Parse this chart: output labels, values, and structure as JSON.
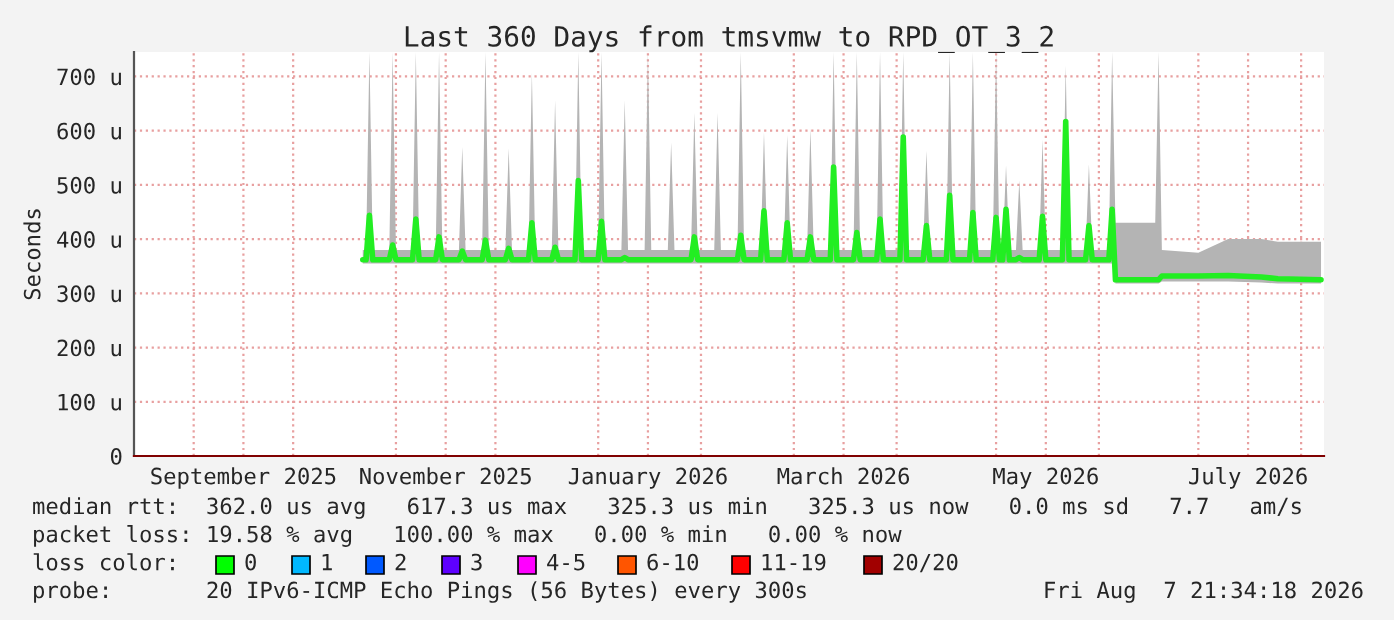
{
  "chart_data": {
    "type": "line",
    "title": "Last 360 Days from tmsvmw to RPD_OT_3_2",
    "ylabel": "Seconds",
    "xlim": [
      "2025-08-14",
      "2026-08-07T21:34"
    ],
    "ylim": [
      0,
      745
    ],
    "xticks": [
      {
        "value": "2025-09-01",
        "label": null
      },
      {
        "value": "2025-09-16",
        "label": "September 2025"
      },
      {
        "value": "2025-10-01",
        "label": null
      },
      {
        "value": "2025-11-01",
        "label": null
      },
      {
        "value": "2025-11-16",
        "label": "November 2025"
      },
      {
        "value": "2025-12-01",
        "label": null
      },
      {
        "value": "2026-01-01",
        "label": null
      },
      {
        "value": "2026-01-16",
        "label": "January 2026"
      },
      {
        "value": "2026-02-01",
        "label": null
      },
      {
        "value": "2026-03-01",
        "label": null
      },
      {
        "value": "2026-03-16",
        "label": "March 2026"
      },
      {
        "value": "2026-04-01",
        "label": null
      },
      {
        "value": "2026-05-01",
        "label": null
      },
      {
        "value": "2026-05-16",
        "label": "May 2026"
      },
      {
        "value": "2026-06-01",
        "label": null
      },
      {
        "value": "2026-07-01",
        "label": null
      },
      {
        "value": "2026-07-16",
        "label": "July 2026"
      },
      {
        "value": "2026-08-01",
        "label": null
      }
    ],
    "yticks": [
      {
        "value": 0,
        "label": "0"
      },
      {
        "value": 100,
        "label": "100 u"
      },
      {
        "value": 200,
        "label": "200 u"
      },
      {
        "value": 300,
        "label": "300 u"
      },
      {
        "value": 400,
        "label": "400 u"
      },
      {
        "value": 500,
        "label": "500 u"
      },
      {
        "value": 600,
        "label": "600 u"
      },
      {
        "value": 700,
        "label": "700 u"
      }
    ],
    "grid": true,
    "series": [
      {
        "color": "#22ee22",
        "x": [
          "2025-10-22",
          "2025-10-23",
          "2025-10-24",
          "2025-10-25",
          "2025-10-30",
          "2025-10-31",
          "2025-11-01",
          "2025-11-06",
          "2025-11-07",
          "2025-11-08",
          "2025-11-13",
          "2025-11-14",
          "2025-11-15",
          "2025-11-20",
          "2025-11-21",
          "2025-11-22",
          "2025-11-27",
          "2025-11-28",
          "2025-11-29",
          "2025-12-04",
          "2025-12-05",
          "2025-12-06",
          "2025-12-11",
          "2025-12-12",
          "2025-12-13",
          "2025-12-18",
          "2025-12-19",
          "2025-12-20",
          "2025-12-25",
          "2025-12-26",
          "2025-12-27",
          "2026-01-01",
          "2026-01-02",
          "2026-01-03",
          "2026-01-08",
          "2026-01-09",
          "2026-01-10",
          "2026-01-15",
          "2026-01-16",
          "2026-01-17",
          "2026-01-22",
          "2026-01-23",
          "2026-01-24",
          "2026-01-29",
          "2026-01-30",
          "2026-01-31",
          "2026-02-05",
          "2026-02-06",
          "2026-02-07",
          "2026-02-12",
          "2026-02-13",
          "2026-02-14",
          "2026-02-19",
          "2026-02-20",
          "2026-02-21",
          "2026-02-26",
          "2026-02-27",
          "2026-02-28",
          "2026-03-05",
          "2026-03-06",
          "2026-03-07",
          "2026-03-12",
          "2026-03-13",
          "2026-03-14",
          "2026-03-19",
          "2026-03-20",
          "2026-03-21",
          "2026-03-26",
          "2026-03-27",
          "2026-03-28",
          "2026-04-02",
          "2026-04-03",
          "2026-04-04",
          "2026-04-09",
          "2026-04-10",
          "2026-04-11",
          "2026-04-16",
          "2026-04-17",
          "2026-04-18",
          "2026-04-23",
          "2026-04-24",
          "2026-04-25",
          "2026-04-30",
          "2026-05-01",
          "2026-05-02",
          "2026-05-03",
          "2026-05-04",
          "2026-05-05",
          "2026-05-07",
          "2026-05-08",
          "2026-05-09",
          "2026-05-14",
          "2026-05-15",
          "2026-05-16",
          "2026-05-21",
          "2026-05-22",
          "2026-05-23",
          "2026-05-28",
          "2026-05-29",
          "2026-05-30",
          "2026-06-04",
          "2026-06-05",
          "2026-06-06",
          "2026-06-18",
          "2026-06-19",
          "2026-06-20",
          "2026-07-01",
          "2026-07-10",
          "2026-07-20",
          "2026-07-25",
          "2026-08-07"
        ],
        "values": [
          362,
          362,
          444,
          362,
          362,
          389,
          362,
          362,
          437,
          362,
          362,
          404,
          362,
          362,
          378,
          362,
          362,
          398,
          362,
          362,
          383,
          362,
          362,
          430,
          362,
          362,
          385,
          362,
          362,
          508,
          362,
          362,
          433,
          362,
          362,
          366,
          362,
          362,
          362,
          362,
          362,
          362,
          362,
          362,
          404,
          362,
          362,
          362,
          362,
          362,
          407,
          362,
          362,
          452,
          362,
          362,
          430,
          362,
          362,
          404,
          362,
          362,
          533,
          362,
          362,
          412,
          362,
          362,
          437,
          362,
          362,
          588,
          362,
          362,
          425,
          362,
          362,
          481,
          362,
          362,
          449,
          362,
          362,
          440,
          362,
          362,
          455,
          362,
          362,
          366,
          362,
          362,
          442,
          362,
          362,
          617,
          362,
          362,
          425,
          362,
          362,
          455,
          325,
          325,
          325,
          332,
          332,
          333,
          330,
          327,
          325
        ],
        "lower": [
          355,
          355,
          355,
          355,
          355,
          355,
          355,
          355,
          355,
          355,
          355,
          355,
          355,
          355,
          355,
          355,
          355,
          355,
          355,
          355,
          355,
          355,
          355,
          355,
          355,
          355,
          355,
          355,
          355,
          355,
          355,
          355,
          355,
          355,
          355,
          355,
          355,
          355,
          355,
          355,
          355,
          355,
          355,
          355,
          355,
          355,
          355,
          355,
          355,
          355,
          355,
          355,
          355,
          355,
          355,
          355,
          355,
          355,
          355,
          355,
          355,
          355,
          355,
          355,
          355,
          355,
          355,
          355,
          355,
          355,
          355,
          355,
          355,
          355,
          355,
          355,
          355,
          355,
          355,
          355,
          355,
          355,
          355,
          355,
          355,
          355,
          355,
          355,
          355,
          355,
          355,
          355,
          355,
          355,
          355,
          355,
          355,
          355,
          355,
          355,
          355,
          355,
          318,
          318,
          318,
          322,
          322,
          322,
          320,
          318,
          318
        ],
        "upper": [
          380,
          380,
          745,
          380,
          380,
          745,
          380,
          380,
          745,
          380,
          380,
          745,
          380,
          380,
          570,
          380,
          380,
          745,
          380,
          380,
          567,
          380,
          380,
          707,
          380,
          380,
          656,
          380,
          380,
          745,
          380,
          380,
          745,
          380,
          380,
          656,
          380,
          380,
          745,
          380,
          380,
          578,
          380,
          380,
          633,
          380,
          380,
          633,
          380,
          380,
          745,
          380,
          380,
          597,
          380,
          380,
          592,
          380,
          380,
          604,
          380,
          380,
          745,
          380,
          380,
          745,
          380,
          380,
          745,
          380,
          380,
          745,
          380,
          380,
          563,
          380,
          380,
          745,
          380,
          380,
          745,
          380,
          380,
          745,
          380,
          380,
          536,
          380,
          380,
          508,
          380,
          380,
          583,
          380,
          380,
          720,
          380,
          380,
          538,
          380,
          380,
          745,
          430,
          430,
          745,
          380,
          375,
          400,
          400,
          395,
          395
        ]
      }
    ],
    "annotations": [
      "median rtt:  362.0 us avg   617.3 us max   325.3 us min   325.3 us now   0.0 ms sd   7.7   am/s",
      "packet loss: 19.58 % avg   100.00 % max   0.00 % min   0.00 % now",
      "loss color:",
      "0",
      "1",
      "2",
      "3",
      "4-5",
      "6-10",
      "11-19",
      "20/20",
      "probe:       20 IPv6-ICMP Echo Pings (56 Bytes) every 300s",
      "Fri Aug  7 21:34:18 2026"
    ]
  }
}
